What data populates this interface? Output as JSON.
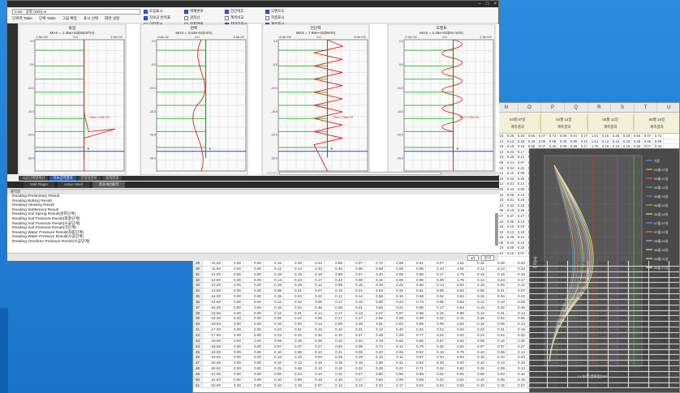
{
  "app": {
    "combo_value": "CSD : 굴착 (N/D) m",
    "menu": [
      "단위력 Table",
      "단계 Table",
      "그림 확장",
      "표시 선택",
      "화면 설정"
    ],
    "checks": [
      {
        "label": "토압표시",
        "on": true
      },
      {
        "label": "벽체변위",
        "on": true
      },
      {
        "label": "전단력도",
        "on": true
      },
      {
        "label": "모멘트도",
        "on": true
      },
      {
        "label": "지보공 반력표",
        "on": true
      },
      {
        "label": "굴착선",
        "on": false
      },
      {
        "label": "계측비교",
        "on": false
      },
      {
        "label": "지층표시",
        "on": false
      },
      {
        "label": "인장표시",
        "on": false
      },
      {
        "label": "지표변위",
        "on": false
      },
      {
        "label": "최대값표시",
        "on": true
      },
      {
        "label": "계측표시",
        "on": true
      }
    ],
    "panels": [
      {
        "title": "토압",
        "max": "MAX = 1.45e+02(kN/m²/m)",
        "ticks": [
          "-1.5e+02",
          "0.0",
          "1.5e+02"
        ],
        "annot": "Max 1.45e+02"
      },
      {
        "title": "변위",
        "max": "MAX = 3.63e-02(m/m)",
        "ticks": [
          "-3.6e-02",
          "0.0",
          "3.6e-02"
        ],
        "annot": ""
      },
      {
        "title": "전단력",
        "max": "MAX = 7.88e+02(kN/m)",
        "ticks": [
          "-8.0e+02",
          "0.0",
          "8.0e+02"
        ],
        "annot": "Max 7.88e+02"
      },
      {
        "title": "모멘트",
        "max": "MAX = 2.25e+02(kN·m/m)",
        "ticks": [
          "-2.3e+02",
          "0.0",
          "2.3e+02"
        ],
        "annot": "Max 2.25e+02"
      }
    ],
    "depth_ticks": [
      "0.0",
      "-5.0",
      "-10.0",
      "-15.0",
      "-20.0",
      "-25.0"
    ],
    "bottom_tabs": [
      "시공단계별계산",
      "지보공력결과",
      "안정성검토",
      "설계결과"
    ],
    "dock_tabs": [
      "Wall Plugin",
      "Active Shell",
      "결과계산출력"
    ],
    "output_title": "출력창",
    "output_lines": [
      "Reading Preliminary Result",
      "Reading Bolting Result",
      "Reading Heaving Result",
      "Reading Settlement Result",
      "Reading Soil Spring Result(굴착단계)",
      "Reading Soil Pressure Result(최종단계)",
      "Reading Soil Pressure Result(시공단계)",
      "Reading Soil Pressure Result(각단계)",
      "Reading Water Pressure Result(최종단계)",
      "Reading Water Pressure Result(시공단계)",
      "Reading Overburn Pressure Result(시공단계)"
    ],
    "bottom_buttons": [
      "1/1",
      "닫기"
    ]
  },
  "sheet": {
    "col_headers": [
      "N",
      "O",
      "P",
      "Q",
      "R",
      "S",
      "T",
      "U"
    ],
    "group_headers": [
      "04월 07일",
      "04월 21일",
      "05월 12일",
      "05월 19일"
    ],
    "sub_header": "계측결과",
    "rows": [
      [
        "29",
        "-11.00",
        "0.00",
        "0.00",
        "0.15",
        "0.26",
        "0.33",
        "0.55",
        "0.07",
        "0.72",
        "0.08",
        "0.91",
        "0.27",
        "1.51"
      ],
      [
        "30",
        "-11.50",
        "0.00",
        "0.00",
        "0.12",
        "0.13",
        "0.33",
        "0.46",
        "0.05",
        "0.58",
        "0.09",
        "0.95",
        "0.10",
        "1.61"
      ],
      [
        "31",
        "-12.00",
        "0.00",
        "0.00",
        "0.18",
        "0.19",
        "0.18",
        "0.58",
        "0.07",
        "0.40",
        "0.09",
        "0.96",
        "0.17",
        "1.75"
      ],
      [
        "32",
        "-12.50",
        "0.00",
        "0.00",
        "0.13",
        "0.23",
        "0.17",
        "0.42",
        "0.08",
        "0.31",
        "0.08",
        "0.99",
        "0.06",
        "1.75"
      ],
      [
        "33",
        "-13.00",
        "0.00",
        "0.00",
        "0.18",
        "0.29",
        "0.12",
        "0.59",
        "0.15",
        "0.48",
        "0.23",
        "0.40",
        "0.13",
        "0.82"
      ],
      [
        "34",
        "-13.50",
        "0.00",
        "0.00",
        "0.08",
        "0.21",
        "0.07",
        "0.16",
        "0.21",
        "0.62",
        "0.25",
        "0.61",
        "0.05",
        "0.82"
      ],
      [
        "35",
        "-14.00",
        "0.00",
        "0.00",
        "0.15",
        "0.34",
        "0.22",
        "0.12",
        "0.14",
        "0.58",
        "0.18",
        "0.58",
        "0.02",
        "0.94"
      ],
      [
        "36",
        "-14.50",
        "0.00",
        "0.00",
        "0.12",
        "0.10",
        "0.09",
        "0.17",
        "0.18",
        "0.50",
        "0.23",
        "0.73",
        "0.05",
        "0.84"
      ],
      [
        "37",
        "-15.00",
        "0.00",
        "0.00",
        "0.15",
        "0.32",
        "0.46",
        "0.08",
        "0.01",
        "0.65",
        "0.01",
        "0.90",
        "0.17",
        "0.84"
      ],
      [
        "38",
        "-15.50",
        "0.00",
        "0.00",
        "0.12",
        "0.31",
        "0.14",
        "0.17",
        "0.13",
        "0.27",
        "0.07",
        "0.98",
        "0.15",
        "0.86"
      ],
      [
        "39",
        "-16.00",
        "0.00",
        "0.00",
        "0.26",
        "0.22",
        "0.06",
        "0.17",
        "0.27",
        "0.66",
        "0.08",
        "0.59",
        "0.02",
        "0.41"
      ],
      [
        "40",
        "-16.50",
        "0.00",
        "0.00",
        "0.15",
        "0.05",
        "0.13",
        "0.09",
        "0.36",
        "0.61",
        "0.02",
        "0.95",
        "0.09",
        "0.82"
      ],
      [
        "41",
        "-17.00",
        "0.00",
        "0.00",
        "0.23",
        "0.31",
        "0.19",
        "0.10",
        "0.31",
        "0.10",
        "0.40",
        "0.62",
        "0.04",
        "0.52"
      ],
      [
        "42",
        "-17.50",
        "0.00",
        "0.00",
        "0.23",
        "0.32",
        "0.32",
        "0.10",
        "0.27",
        "0.49",
        "0.29",
        "0.77",
        "0.02",
        "0.62"
      ],
      [
        "43",
        "-18.00",
        "0.00",
        "0.00",
        "0.09",
        "0.16",
        "0.26",
        "0.10",
        "0.02",
        "0.19",
        "0.02",
        "0.66",
        "0.07",
        "0.82"
      ],
      [
        "44",
        "-18.50",
        "0.00",
        "0.00",
        "0.07",
        "0.37",
        "0.27",
        "0.56",
        "0.05",
        "0.74",
        "0.14",
        "0.76",
        "0.32",
        "0.82"
      ],
      [
        "45",
        "-19.00",
        "0.00",
        "0.00",
        "0.10",
        "0.36",
        "0.13",
        "0.31",
        "0.06",
        "0.40",
        "0.06",
        "0.52",
        "0.16",
        "0.79"
      ],
      [
        "46",
        "-19.50",
        "0.00",
        "0.00",
        "0.18",
        "0.10",
        "0.03",
        "0.26",
        "0.18",
        "0.10",
        "0.11",
        "0.97",
        "0.04",
        "0.82"
      ],
      [
        "47",
        "-20.00",
        "0.00",
        "0.00",
        "0.10",
        "0.13",
        "0.19",
        "0.15",
        "0.18",
        "0.38",
        "0.31",
        "0.62",
        "0.36",
        "0.62"
      ],
      [
        "48",
        "-20.50",
        "0.00",
        "0.00",
        "0.25",
        "0.38",
        "0.13",
        "0.10",
        "0.32",
        "0.45",
        "0.22",
        "0.71",
        "0.02",
        "0.52"
      ],
      [
        "49",
        "-21.00",
        "0.00",
        "0.00",
        "0.05",
        "0.23",
        "0.10",
        "0.10",
        "0.27",
        "0.60",
        "0.56",
        "0.56",
        "0.02",
        "0.61"
      ],
      [
        "50",
        "-21.50",
        "0.00",
        "0.00",
        "0.10",
        "0.05",
        "0.15",
        "0.16",
        "0.17",
        "0.84",
        "0.09",
        "0.59",
        "0.02",
        "0.61"
      ],
      [
        "51",
        "-22.00",
        "0.00",
        "0.00",
        "0.10",
        "0.15",
        "0.07",
        "0.12",
        "0.13",
        "0.34",
        "0.17",
        "0.62",
        "0.04",
        "0.52"
      ]
    ],
    "chart_legend": [
      "기준",
      "04월 07일",
      "04월 21일",
      "05월 12일",
      "05월 19일",
      "06월 02일",
      "06월 16일",
      "07월 07일",
      "07월 21일",
      "08월 04일",
      "08월 18일",
      "09월 01일",
      "09월 15일"
    ],
    "chart_xlabel": "Lx 누적 변위량(mm)",
    "chart_ylabel": "깊이(m)"
  }
}
